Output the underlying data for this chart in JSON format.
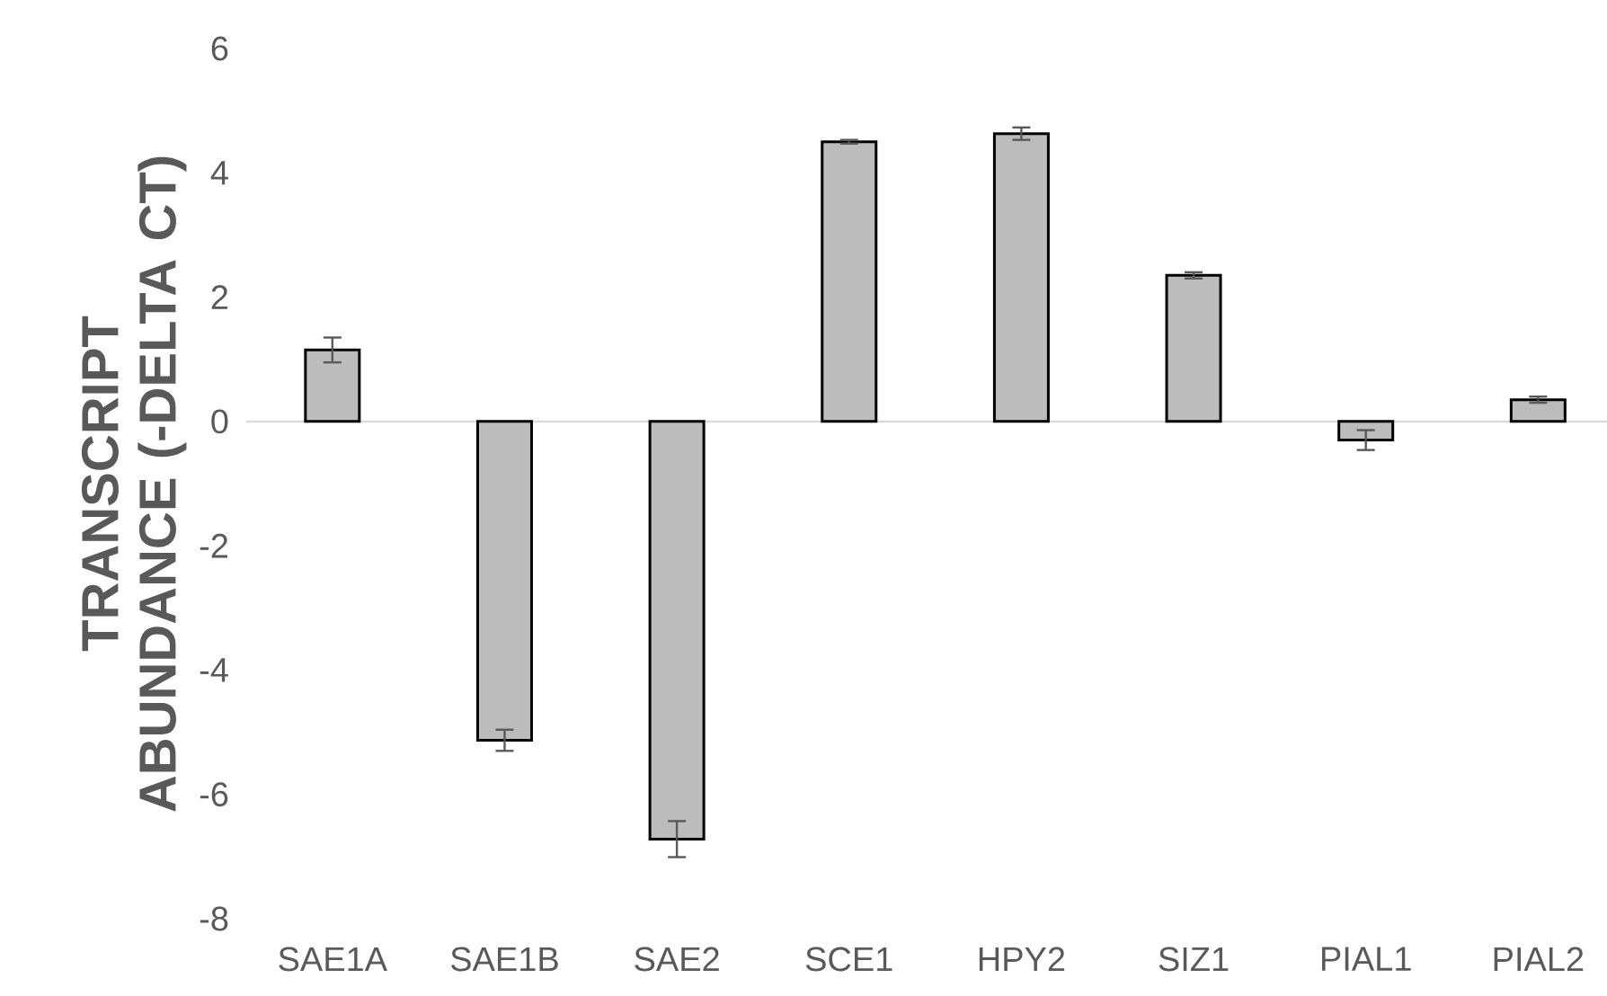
{
  "chart_data": {
    "type": "bar",
    "ylabel": "TRANSCRIPT ABUNDANCE (-DELTA CT)",
    "categories": [
      "SAE1A",
      "SAE1B",
      "SAE2",
      "SCE1",
      "HPY2",
      "SIZ1",
      "PIAL1",
      "PIAL2"
    ],
    "values": [
      1.15,
      -5.13,
      -6.72,
      4.5,
      4.63,
      2.35,
      -0.3,
      0.35
    ],
    "errors": [
      0.2,
      0.17,
      0.29,
      0.03,
      0.1,
      0.05,
      0.16,
      0.05
    ],
    "color": "#bcbcbc",
    "ylim": [
      -8,
      6
    ],
    "yticks": [
      -8,
      -6,
      -4,
      -2,
      0,
      2,
      4,
      6
    ]
  }
}
